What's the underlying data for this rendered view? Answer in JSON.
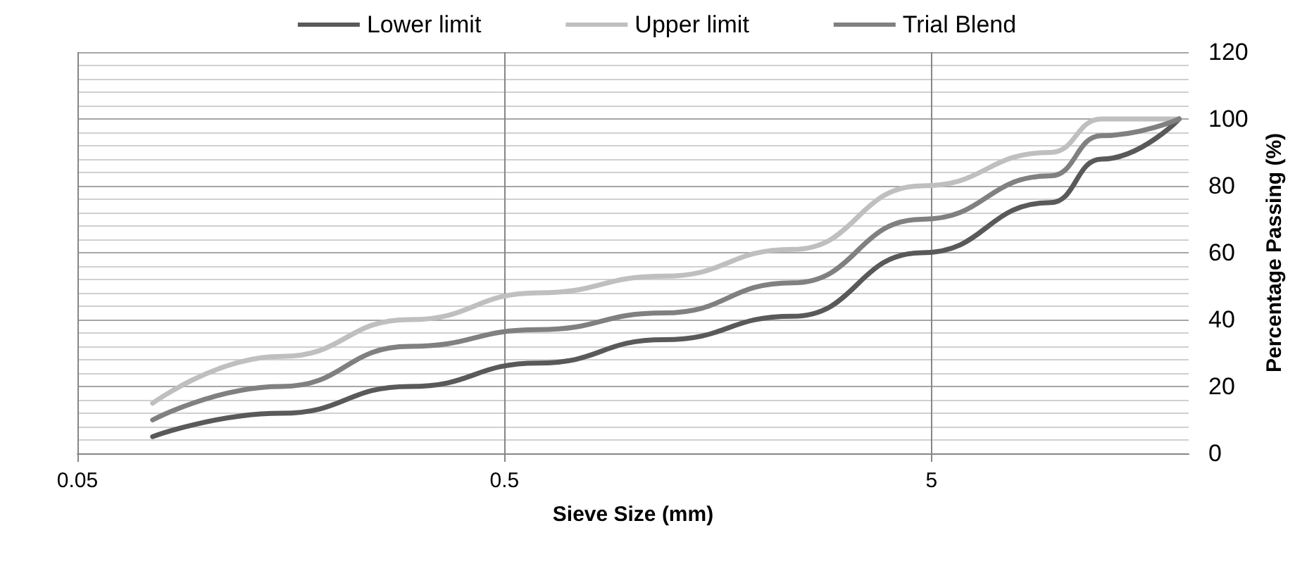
{
  "chart_data": {
    "type": "line",
    "xlabel": "Sieve Size (mm)",
    "ylabel": "Percentage Passing (%)",
    "x": [
      0.075,
      0.15,
      0.3,
      0.6,
      1.18,
      2.36,
      4.75,
      9.5,
      12.5,
      19
    ],
    "series": [
      {
        "name": "Lower limit",
        "color": "#595959",
        "values": [
          5,
          12,
          20,
          27,
          34,
          41,
          60,
          75,
          88,
          100
        ]
      },
      {
        "name": "Upper limit",
        "color": "#bfbfbf",
        "values": [
          15,
          29,
          40,
          48,
          53,
          61,
          80,
          90,
          100,
          100
        ]
      },
      {
        "name": "Trial Blend",
        "color": "#808080",
        "values": [
          10,
          20,
          32,
          37,
          42,
          51,
          70,
          83,
          95,
          100
        ]
      }
    ],
    "log": "x",
    "xlim": [
      0.05,
      20
    ],
    "xticks": [
      0.05,
      0.5,
      5
    ],
    "ylim": [
      0,
      120
    ],
    "yticks": [
      0,
      20,
      40,
      60,
      80,
      100,
      120
    ],
    "grid": true,
    "legend": "top",
    "marker": "none",
    "line_style": "solid"
  }
}
